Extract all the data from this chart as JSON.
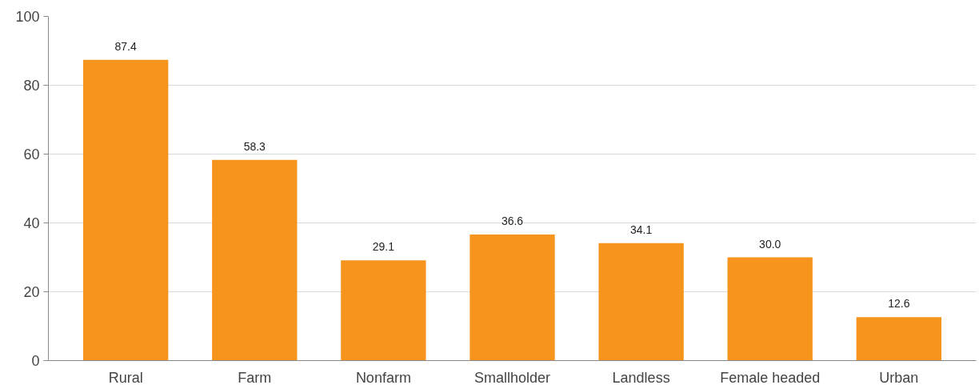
{
  "chart_data": {
    "type": "bar",
    "categories": [
      "Rural",
      "Farm",
      "Nonfarm",
      "Smallholder",
      "Landless",
      "Female headed",
      "Urban"
    ],
    "values": [
      87.4,
      58.3,
      29.1,
      36.6,
      34.1,
      30.0,
      12.6
    ],
    "value_labels": [
      "87.4",
      "58.3",
      "29.1",
      "36.6",
      "34.1",
      "30.0",
      "12.6"
    ],
    "color": "#f7941d",
    "ylim": [
      0,
      100
    ],
    "yticks": [
      0,
      20,
      40,
      60,
      80,
      100
    ],
    "grid": "y"
  }
}
